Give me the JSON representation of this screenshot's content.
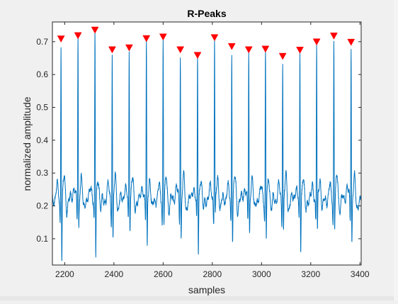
{
  "colors": {
    "figure_bg": "#f0f0f0",
    "axes_bg": "#ffffff",
    "signal": "#0072bd",
    "marker": "#ff0000",
    "axis": "#262626"
  },
  "chart_data": {
    "type": "line",
    "title": "R-Peaks",
    "xlabel": "samples",
    "ylabel": "normalized amplitude",
    "xlim": [
      2150,
      3405
    ],
    "ylim": [
      0.02,
      0.76
    ],
    "xticks": [
      2200,
      2400,
      2600,
      2800,
      3000,
      3200,
      3400
    ],
    "xtick_labels": [
      "2200",
      "2400",
      "2600",
      "2800",
      "3000",
      "3200",
      "3400"
    ],
    "yticks": [
      0.1,
      0.2,
      0.3,
      0.4,
      0.5,
      0.6,
      0.7
    ],
    "ytick_labels": [
      "0.1",
      "0.2",
      "0.3",
      "0.4",
      "0.5",
      "0.6",
      "0.7"
    ],
    "grid": false,
    "series": [
      {
        "kind": "signal",
        "baseline": 0.22,
        "beat_x": [
          2185,
          2254,
          2323,
          2393,
          2462,
          2532,
          2600,
          2670,
          2740,
          2809,
          2879,
          2948,
          3016,
          3086,
          3156,
          3224,
          3294,
          3364
        ],
        "beat_peak": [
          0.705,
          0.715,
          0.732,
          0.672,
          0.678,
          0.706,
          0.711,
          0.672,
          0.655,
          0.709,
          0.682,
          0.672,
          0.674,
          0.652,
          0.671,
          0.696,
          0.714,
          0.695
        ],
        "beat_dip": [
          0.03,
          0.13,
          0.03,
          0.08,
          0.13,
          0.06,
          0.14,
          0.09,
          0.05,
          0.15,
          0.09,
          0.1,
          0.09,
          0.11,
          0.07,
          0.1,
          0.13,
          0.08
        ]
      },
      {
        "kind": "markers",
        "x": [
          2185,
          2254,
          2323,
          2393,
          2462,
          2532,
          2600,
          2670,
          2740,
          2809,
          2879,
          2948,
          3016,
          3086,
          3156,
          3224,
          3294,
          3364
        ],
        "y": [
          0.705,
          0.715,
          0.732,
          0.672,
          0.678,
          0.706,
          0.711,
          0.672,
          0.655,
          0.709,
          0.682,
          0.672,
          0.674,
          0.652,
          0.671,
          0.696,
          0.714,
          0.695
        ]
      }
    ]
  }
}
